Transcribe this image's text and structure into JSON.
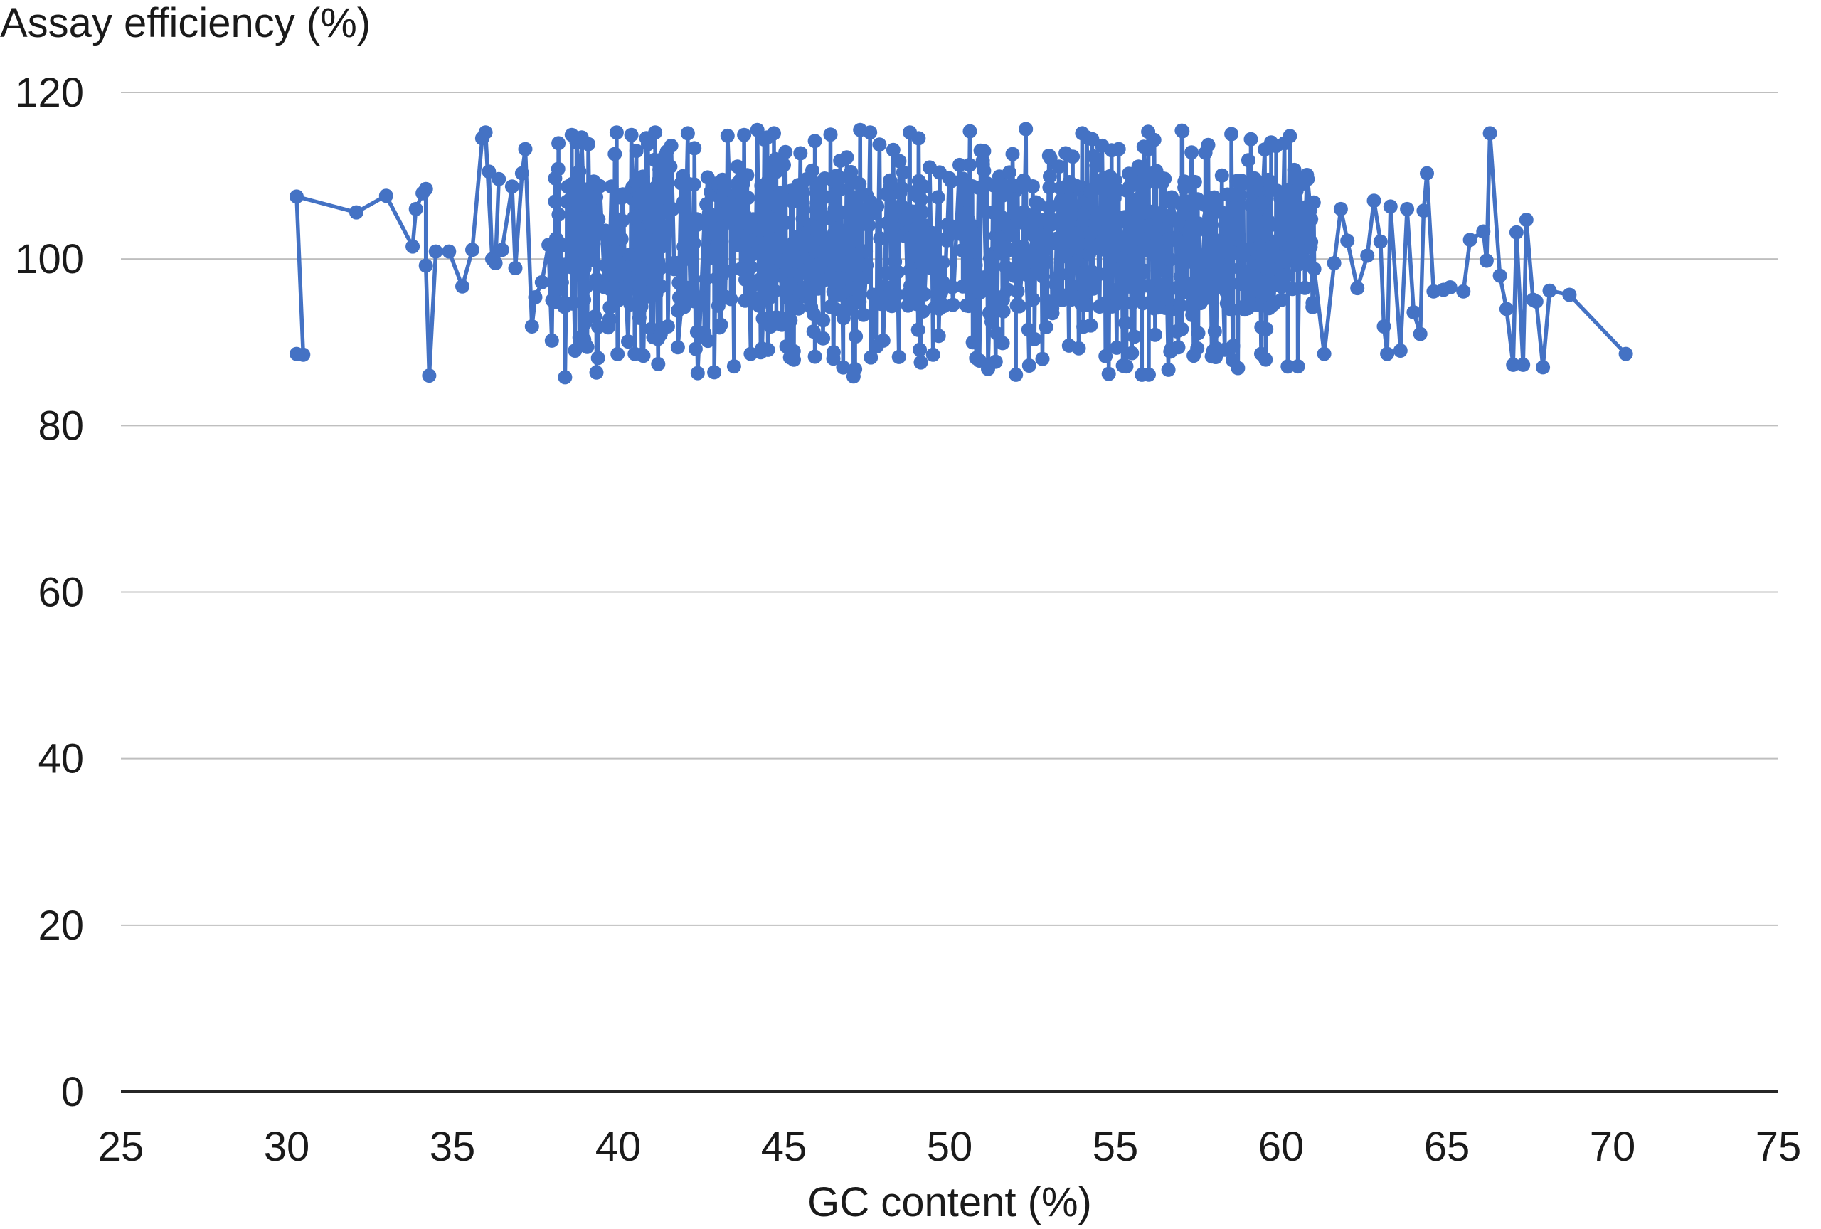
{
  "chart_data": {
    "type": "line",
    "ylabel": "Assay efficiency (%)",
    "xlabel": "GC content (%)",
    "xlim": [
      25,
      75
    ],
    "ylim": [
      0,
      120
    ],
    "x_ticks": [
      "25",
      "30",
      "35",
      "40",
      "45",
      "50",
      "55",
      "60",
      "65",
      "70",
      "75"
    ],
    "y_ticks": [
      "0",
      "20",
      "40",
      "60",
      "80",
      "100",
      "120"
    ],
    "grid": true,
    "legend": "none",
    "series": [
      {
        "color": "#4472C4",
        "marker": "circle",
        "x_range": [
          30.3,
          70.4
        ],
        "y_range": [
          85.8,
          115.6
        ],
        "points": [
          [
            30.3,
            88.6
          ],
          [
            30.5,
            88.5
          ],
          [
            30.3,
            107.5
          ],
          [
            32.1,
            105.6
          ],
          [
            33.0,
            107.6
          ],
          [
            33.8,
            101.5
          ],
          [
            33.9,
            106.0
          ],
          [
            34.1,
            107.9
          ],
          [
            34.2,
            108.4
          ],
          [
            34.2,
            99.2
          ],
          [
            34.3,
            86.0
          ],
          [
            34.5,
            100.9
          ],
          [
            34.9,
            100.9
          ],
          [
            35.3,
            96.7
          ],
          [
            35.6,
            101.1
          ],
          [
            35.9,
            114.5
          ],
          [
            36.0,
            115.2
          ],
          [
            36.2,
            100.0
          ],
          [
            36.1,
            110.5
          ],
          [
            36.4,
            109.6
          ],
          [
            36.3,
            99.5
          ],
          [
            36.5,
            101.1
          ],
          [
            36.8,
            108.7
          ],
          [
            36.9,
            98.9
          ],
          [
            37.1,
            110.3
          ],
          [
            37.2,
            113.2
          ],
          [
            37.4,
            91.9
          ],
          [
            37.5,
            95.4
          ],
          [
            37.7,
            97.2
          ],
          [
            37.9,
            101.7
          ],
          [
            38.0,
            90.2
          ],
          [
            38.1,
            106.9
          ],
          [
            38.2,
            113.9
          ],
          [
            38.4,
            85.8
          ],
          [
            38.5,
            99.1
          ],
          [
            38.6,
            114.9
          ],
          [
            38.7,
            89.0
          ],
          [
            38.9,
            114.6
          ],
          [
            39.0,
            92.3
          ],
          [
            39.1,
            113.8
          ],
          [
            39.3,
            93.1
          ],
          [
            39.4,
            103.0
          ],
          [
            39.6,
            96.6
          ],
          [
            39.8,
            108.7
          ],
          [
            39.7,
            91.8
          ],
          [
            39.9,
            112.6
          ],
          [
            40.1,
            102.4
          ],
          [
            40.2,
            99.5
          ],
          [
            40.3,
            90.1
          ],
          [
            40.4,
            114.9
          ],
          [
            40.5,
            88.6
          ],
          [
            40.6,
            106.9
          ],
          [
            40.7,
            94.3
          ],
          [
            40.9,
            113.8
          ],
          [
            41.0,
            91.6
          ],
          [
            41.1,
            111.9
          ],
          [
            41.2,
            90.4
          ],
          [
            41.3,
            96.7
          ],
          [
            41.4,
            112.3
          ],
          [
            41.5,
            91.9
          ],
          [
            41.6,
            113.6
          ],
          [
            41.8,
            93.8
          ],
          [
            41.9,
            109.1
          ],
          [
            41.8,
            89.4
          ],
          [
            42.1,
            115.1
          ],
          [
            42.2,
            96.6
          ],
          [
            42.3,
            113.3
          ],
          [
            42.4,
            86.3
          ],
          [
            42.5,
            95.4
          ],
          [
            42.6,
            91.1
          ],
          [
            42.7,
            109.8
          ],
          [
            42.9,
            86.4
          ],
          [
            43.0,
            107.6
          ],
          [
            43.1,
            92.1
          ],
          [
            43.3,
            114.8
          ],
          [
            43.4,
            95.2
          ],
          [
            43.6,
            111.1
          ],
          [
            43.7,
            98.8
          ],
          [
            43.8,
            114.9
          ],
          [
            44.0,
            88.6
          ],
          [
            44.1,
            103.9
          ],
          [
            44.2,
            115.5
          ],
          [
            44.3,
            88.8
          ],
          [
            44.5,
            114.6
          ],
          [
            44.6,
            91.9
          ],
          [
            44.7,
            115.1
          ],
          [
            44.9,
            98.0
          ],
          [
            45.0,
            111.3
          ],
          [
            45.2,
            92.6
          ],
          [
            45.3,
            87.9
          ],
          [
            45.5,
            112.7
          ],
          [
            45.6,
            99.3
          ],
          [
            45.8,
            104.1
          ],
          [
            45.9,
            93.4
          ],
          [
            46.1,
            109.1
          ],
          [
            46.2,
            97.4
          ],
          [
            46.4,
            104.9
          ],
          [
            46.5,
            88.8
          ],
          [
            46.7,
            111.8
          ],
          [
            46.8,
            92.9
          ],
          [
            46.9,
            112.2
          ],
          [
            47.1,
            85.9
          ],
          [
            47.2,
            107.4
          ],
          [
            47.3,
            115.5
          ],
          [
            47.4,
            93.3
          ],
          [
            47.6,
            115.2
          ],
          [
            47.7,
            95.7
          ],
          [
            47.8,
            89.5
          ],
          [
            48.0,
            90.2
          ],
          [
            48.1,
            107.8
          ],
          [
            48.3,
            113.1
          ],
          [
            48.4,
            95.7
          ],
          [
            48.6,
            110.4
          ],
          [
            48.8,
            115.2
          ],
          [
            48.9,
            98.1
          ],
          [
            49.1,
            89.1
          ],
          [
            49.2,
            93.7
          ],
          [
            49.4,
            111.0
          ],
          [
            49.5,
            88.5
          ],
          [
            49.7,
            110.4
          ],
          [
            49.8,
            97.2
          ],
          [
            50.0,
            103.1
          ],
          [
            50.1,
            94.5
          ],
          [
            50.3,
            111.3
          ],
          [
            50.4,
            96.7
          ],
          [
            50.6,
            111.3
          ],
          [
            50.7,
            90.0
          ],
          [
            50.8,
            88.1
          ],
          [
            50.9,
            87.8
          ],
          [
            51.0,
            111.8
          ],
          [
            51.2,
            93.5
          ],
          [
            51.3,
            105.6
          ],
          [
            51.5,
            109.9
          ],
          [
            51.6,
            89.9
          ],
          [
            51.8,
            110.4
          ],
          [
            51.9,
            112.6
          ],
          [
            52.0,
            86.1
          ],
          [
            52.2,
            100.1
          ],
          [
            52.3,
            115.6
          ],
          [
            52.4,
            87.2
          ],
          [
            52.6,
            106.8
          ],
          [
            52.8,
            88.0
          ],
          [
            53.0,
            112.4
          ],
          [
            53.1,
            93.5
          ],
          [
            53.3,
            111.1
          ],
          [
            53.5,
            112.7
          ],
          [
            53.6,
            89.6
          ],
          [
            53.8,
            108.8
          ],
          [
            54.0,
            115.1
          ],
          [
            54.1,
            94.7
          ],
          [
            54.3,
            114.4
          ],
          [
            54.4,
            104.2
          ],
          [
            54.6,
            113.6
          ],
          [
            54.8,
            86.2
          ],
          [
            54.9,
            94.3
          ],
          [
            55.1,
            113.2
          ],
          [
            55.3,
            92.3
          ],
          [
            55.5,
            88.7
          ],
          [
            55.7,
            111.1
          ],
          [
            55.8,
            86.1
          ],
          [
            56.0,
            113.2
          ],
          [
            56.2,
            90.9
          ],
          [
            56.4,
            104.6
          ],
          [
            56.6,
            86.7
          ],
          [
            56.7,
            107.4
          ],
          [
            56.9,
            89.4
          ],
          [
            57.1,
            96.9
          ],
          [
            57.3,
            112.8
          ],
          [
            57.5,
            91.1
          ],
          [
            57.7,
            106.5
          ],
          [
            57.8,
            113.7
          ],
          [
            58.0,
            91.3
          ],
          [
            58.2,
            105.6
          ],
          [
            58.3,
            89.1
          ],
          [
            58.5,
            115.0
          ],
          [
            58.7,
            86.9
          ],
          [
            58.8,
            109.4
          ],
          [
            59.0,
            94.1
          ],
          [
            59.2,
            106.1
          ],
          [
            59.4,
            88.6
          ],
          [
            59.6,
            108.6
          ],
          [
            59.7,
            114.0
          ],
          [
            59.9,
            96.9
          ],
          [
            60.1,
            113.9
          ],
          [
            60.2,
            87.1
          ],
          [
            60.3,
            108.4
          ],
          [
            60.4,
            110.7
          ],
          [
            60.5,
            99.3
          ],
          [
            60.7,
            103.6
          ],
          [
            61.0,
            98.8
          ],
          [
            61.3,
            88.6
          ],
          [
            61.6,
            99.5
          ],
          [
            61.8,
            106.0
          ],
          [
            62.0,
            102.2
          ],
          [
            62.3,
            96.5
          ],
          [
            62.6,
            100.4
          ],
          [
            62.8,
            107.0
          ],
          [
            63.0,
            102.1
          ],
          [
            63.1,
            91.9
          ],
          [
            63.2,
            88.6
          ],
          [
            63.3,
            106.3
          ],
          [
            63.6,
            89.0
          ],
          [
            63.8,
            106.0
          ],
          [
            64.0,
            93.6
          ],
          [
            64.2,
            91.0
          ],
          [
            64.3,
            105.8
          ],
          [
            64.4,
            110.3
          ],
          [
            64.6,
            96.1
          ],
          [
            64.9,
            96.3
          ],
          [
            65.1,
            96.6
          ],
          [
            65.5,
            96.1
          ],
          [
            65.7,
            102.3
          ],
          [
            66.1,
            103.3
          ],
          [
            66.2,
            99.8
          ],
          [
            66.3,
            115.1
          ],
          [
            66.6,
            98.0
          ],
          [
            66.8,
            94.0
          ],
          [
            67.0,
            87.3
          ],
          [
            67.1,
            103.2
          ],
          [
            67.3,
            87.3
          ],
          [
            67.4,
            104.7
          ],
          [
            67.6,
            95.1
          ],
          [
            67.7,
            94.9
          ],
          [
            67.9,
            87.0
          ],
          [
            68.1,
            96.2
          ],
          [
            68.7,
            95.7
          ],
          [
            70.4,
            88.6
          ]
        ]
      }
    ]
  }
}
